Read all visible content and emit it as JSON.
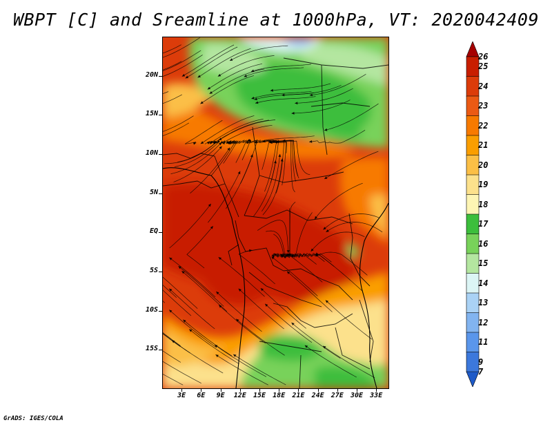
{
  "title": "WBPT [C] and Sreamline at 1000hPa, VT: 2020042409",
  "credit": "GrADS: IGES/COLA",
  "map": {
    "lon_range": [
      0,
      35
    ],
    "lat_range": [
      -20,
      25
    ],
    "lat_ticks": [
      {
        "value": 20,
        "label": "20N"
      },
      {
        "value": 15,
        "label": "15N"
      },
      {
        "value": 10,
        "label": "10N"
      },
      {
        "value": 5,
        "label": "5N"
      },
      {
        "value": 0,
        "label": "EQ"
      },
      {
        "value": -5,
        "label": "5S"
      },
      {
        "value": -10,
        "label": "10S"
      },
      {
        "value": -15,
        "label": "15S"
      }
    ],
    "lon_ticks": [
      {
        "value": 3,
        "label": "3E"
      },
      {
        "value": 6,
        "label": "6E"
      },
      {
        "value": 9,
        "label": "9E"
      },
      {
        "value": 12,
        "label": "12E"
      },
      {
        "value": 15,
        "label": "15E"
      },
      {
        "value": 18,
        "label": "18E"
      },
      {
        "value": 21,
        "label": "21E"
      },
      {
        "value": 24,
        "label": "24E"
      },
      {
        "value": 27,
        "label": "27E"
      },
      {
        "value": 30,
        "label": "30E"
      },
      {
        "value": 33,
        "label": "33E"
      }
    ]
  },
  "colorbar": {
    "levels": [
      {
        "label": "26",
        "color": "#a50000"
      },
      {
        "label": "25",
        "color": "#c81e00"
      },
      {
        "label": "24",
        "color": "#dc3c0a"
      },
      {
        "label": "23",
        "color": "#eb5a14"
      },
      {
        "label": "22",
        "color": "#f77a00"
      },
      {
        "label": "21",
        "color": "#fa9e00"
      },
      {
        "label": "20",
        "color": "#fbbf46"
      },
      {
        "label": "19",
        "color": "#fce18c"
      },
      {
        "label": "18",
        "color": "#fdf5b4"
      },
      {
        "label": "17",
        "color": "#3cbe3c"
      },
      {
        "label": "16",
        "color": "#78d25a"
      },
      {
        "label": "15",
        "color": "#b4e6a0"
      },
      {
        "label": "14",
        "color": "#dcf5f5"
      },
      {
        "label": "13",
        "color": "#aad2f5"
      },
      {
        "label": "12",
        "color": "#82b4f0"
      },
      {
        "label": "11",
        "color": "#5a96eb"
      },
      {
        "label": "9",
        "color": "#3c78dc"
      },
      {
        "label": "7",
        "color": "#1e5ac8"
      }
    ]
  }
}
